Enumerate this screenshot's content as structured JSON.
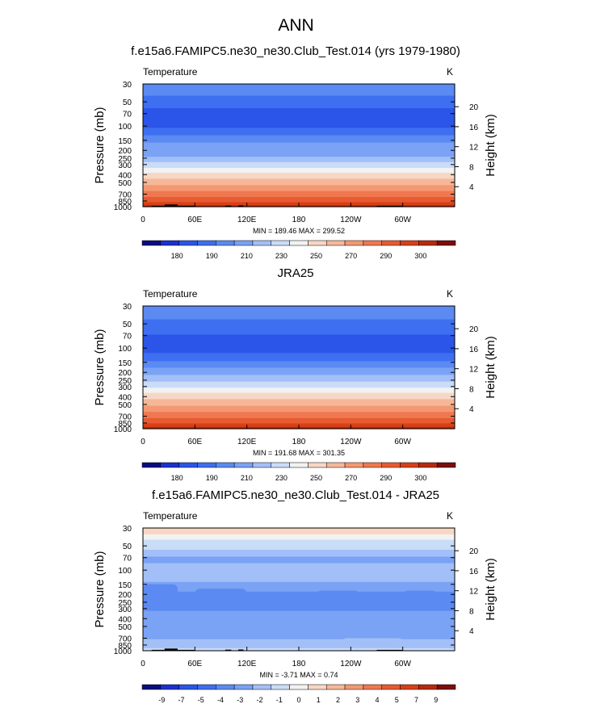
{
  "main_title": "ANN",
  "chart_data": [
    {
      "type": "heatmap",
      "title": "f.e15a6.FAMIPC5.ne30_ne30.Club_Test.014 (yrs 1979-1980)",
      "left_label": "Temperature",
      "right_label": "K",
      "ylabel": "Pressure (mb)",
      "ylabel_right": "Height (km)",
      "x_ticks": [
        "0",
        "60E",
        "120E",
        "180",
        "120W",
        "60W"
      ],
      "x_range": [
        0,
        360
      ],
      "y_ticks": [
        "30",
        "50",
        "70",
        "100",
        "150",
        "200",
        "250",
        "300",
        "400",
        "500",
        "700",
        "850",
        "1000"
      ],
      "y_range_mb": [
        30,
        1000
      ],
      "y_scale": "log",
      "height_ticks": [
        "20",
        "16",
        "12",
        "8",
        "4"
      ],
      "stats": "MIN = 189.46  MAX = 299.52",
      "min": 189.46,
      "max": 299.52,
      "colorbar_labels": [
        "180",
        "190",
        "210",
        "230",
        "250",
        "270",
        "290",
        "300"
      ],
      "colors": [
        "#0b0b80",
        "#1b30d0",
        "#2b55e8",
        "#3e6ff0",
        "#5a8af2",
        "#7aa2f5",
        "#a3bff7",
        "#c9dcf8",
        "#f2f2f2",
        "#f7d7c4",
        "#f6b799",
        "#f39872",
        "#ef7850",
        "#e85a30",
        "#d84018",
        "#b82a0e",
        "#7a0e0e"
      ],
      "profile": [
        [
          30,
          "#5a8af2"
        ],
        [
          42,
          "#3e6ff0"
        ],
        [
          60,
          "#2b55e8"
        ],
        [
          105,
          "#3e6ff0"
        ],
        [
          130,
          "#5a8af2"
        ],
        [
          160,
          "#7aa2f5"
        ],
        [
          200,
          "#7aa2f5"
        ],
        [
          240,
          "#a3bff7"
        ],
        [
          280,
          "#c9dcf8"
        ],
        [
          330,
          "#f2f2f2"
        ],
        [
          380,
          "#f7d7c4"
        ],
        [
          450,
          "#f6b799"
        ],
        [
          540,
          "#f39872"
        ],
        [
          640,
          "#ef7850"
        ],
        [
          760,
          "#e85a30"
        ],
        [
          880,
          "#d84018"
        ],
        [
          960,
          "#b82a0e"
        ],
        [
          1000,
          "#b82a0e"
        ]
      ]
    },
    {
      "type": "heatmap",
      "title": "JRA25",
      "left_label": "Temperature",
      "right_label": "K",
      "ylabel": "Pressure (mb)",
      "ylabel_right": "Height (km)",
      "x_ticks": [
        "0",
        "60E",
        "120E",
        "180",
        "120W",
        "60W"
      ],
      "x_range": [
        0,
        360
      ],
      "y_ticks": [
        "30",
        "50",
        "70",
        "100",
        "150",
        "200",
        "250",
        "300",
        "400",
        "500",
        "700",
        "850",
        "1000"
      ],
      "y_range_mb": [
        30,
        1000
      ],
      "y_scale": "log",
      "height_ticks": [
        "20",
        "16",
        "12",
        "8",
        "4"
      ],
      "stats": "MIN = 191.68  MAX = 301.35",
      "min": 191.68,
      "max": 301.35,
      "colorbar_labels": [
        "180",
        "190",
        "210",
        "230",
        "250",
        "270",
        "290",
        "300"
      ],
      "colors": [
        "#0b0b80",
        "#1b30d0",
        "#2b55e8",
        "#3e6ff0",
        "#5a8af2",
        "#7aa2f5",
        "#a3bff7",
        "#c9dcf8",
        "#f2f2f2",
        "#f7d7c4",
        "#f6b799",
        "#f39872",
        "#ef7850",
        "#e85a30",
        "#d84018",
        "#b82a0e",
        "#7a0e0e"
      ],
      "profile": [
        [
          30,
          "#5a8af2"
        ],
        [
          44,
          "#3e6ff0"
        ],
        [
          68,
          "#2b55e8"
        ],
        [
          115,
          "#3e6ff0"
        ],
        [
          145,
          "#5a8af2"
        ],
        [
          175,
          "#7aa2f5"
        ],
        [
          215,
          "#a3bff7"
        ],
        [
          260,
          "#c9dcf8"
        ],
        [
          310,
          "#f2f2f2"
        ],
        [
          360,
          "#f7d7c4"
        ],
        [
          430,
          "#f6b799"
        ],
        [
          520,
          "#f39872"
        ],
        [
          620,
          "#ef7850"
        ],
        [
          740,
          "#e85a30"
        ],
        [
          860,
          "#d84018"
        ],
        [
          950,
          "#b82a0e"
        ],
        [
          1000,
          "#b82a0e"
        ]
      ]
    },
    {
      "type": "heatmap",
      "title": "f.e15a6.FAMIPC5.ne30_ne30.Club_Test.014 - JRA25",
      "left_label": "Temperature",
      "right_label": "K",
      "ylabel": "Pressure (mb)",
      "ylabel_right": "Height (km)",
      "x_ticks": [
        "0",
        "60E",
        "120E",
        "180",
        "120W",
        "60W"
      ],
      "x_range": [
        0,
        360
      ],
      "y_ticks": [
        "30",
        "50",
        "70",
        "100",
        "150",
        "200",
        "250",
        "300",
        "400",
        "500",
        "700",
        "850",
        "1000"
      ],
      "y_range_mb": [
        30,
        1000
      ],
      "y_scale": "log",
      "height_ticks": [
        "20",
        "16",
        "12",
        "8",
        "4"
      ],
      "stats": "MIN = -3.71  MAX =   0.74",
      "min": -3.71,
      "max": 0.74,
      "colorbar_labels": [
        "-9",
        "-7",
        "-5",
        "-4",
        "-3",
        "-2",
        "-1",
        "0",
        "1",
        "2",
        "3",
        "4",
        "5",
        "7",
        "9"
      ],
      "colors": [
        "#0b0b80",
        "#1b30d0",
        "#2b55e8",
        "#3e6ff0",
        "#5a8af2",
        "#7aa2f5",
        "#a3bff7",
        "#c9dcf8",
        "#f2f2f2",
        "#f7d7c4",
        "#f6b799",
        "#f39872",
        "#ef7850",
        "#e85a30",
        "#d84018",
        "#b82a0e",
        "#7a0e0e"
      ],
      "profile": [
        [
          30,
          "#f7d7c4"
        ],
        [
          36,
          "#f2f2f2"
        ],
        [
          42,
          "#c9dcf8"
        ],
        [
          56,
          "#a3bff7"
        ],
        [
          68,
          "#7aa2f5"
        ],
        [
          82,
          "#a3bff7"
        ],
        [
          140,
          "#7aa2f5"
        ],
        [
          185,
          "#5a8af2"
        ],
        [
          320,
          "#7aa2f5"
        ],
        [
          720,
          "#a3bff7"
        ],
        [
          930,
          "#c9dcf8"
        ],
        [
          1000,
          "#c9dcf8"
        ]
      ]
    }
  ]
}
